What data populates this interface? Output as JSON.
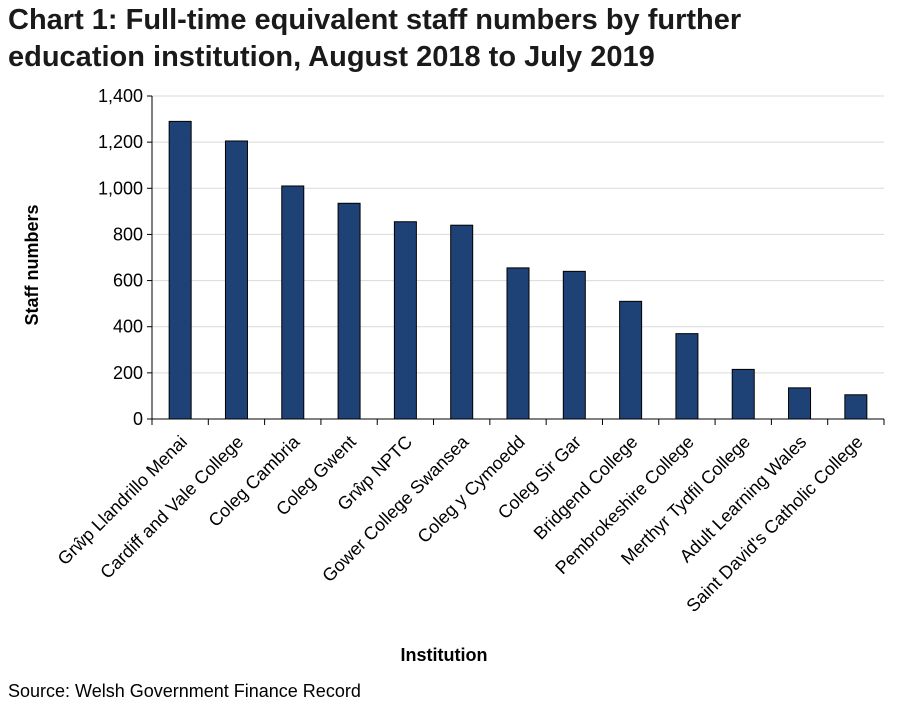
{
  "chart_data": {
    "type": "bar",
    "title": "Chart 1: Full-time equivalent staff numbers by further education institution, August 2018 to July 2019",
    "x_label": "Institution",
    "y_label": "Staff numbers",
    "source": "Source: Welsh Government Finance Record",
    "categories": [
      "Grŵp Llandrillo Menai",
      "Cardiff and Vale College",
      "Coleg Cambria",
      "Coleg Gwent",
      "Grŵp NPTC",
      "Gower College Swansea",
      "Coleg y Cymoedd",
      "Coleg Sir Gar",
      "Bridgend College",
      "Pembrokeshire College",
      "Merthyr Tydfil College",
      "Adult Learning Wales",
      "Saint David's Catholic College"
    ],
    "values": [
      1290,
      1205,
      1010,
      935,
      855,
      840,
      655,
      640,
      510,
      370,
      215,
      135,
      105
    ],
    "color": "#1f4276",
    "ylim": [
      0,
      1400
    ],
    "yticks": [
      0,
      200,
      400,
      600,
      800,
      {
        "value": 1000,
        "label": "1,000"
      },
      {
        "value": 1200,
        "label": "1,200"
      },
      {
        "value": 1400,
        "label": "1,400"
      }
    ],
    "grid": true
  }
}
